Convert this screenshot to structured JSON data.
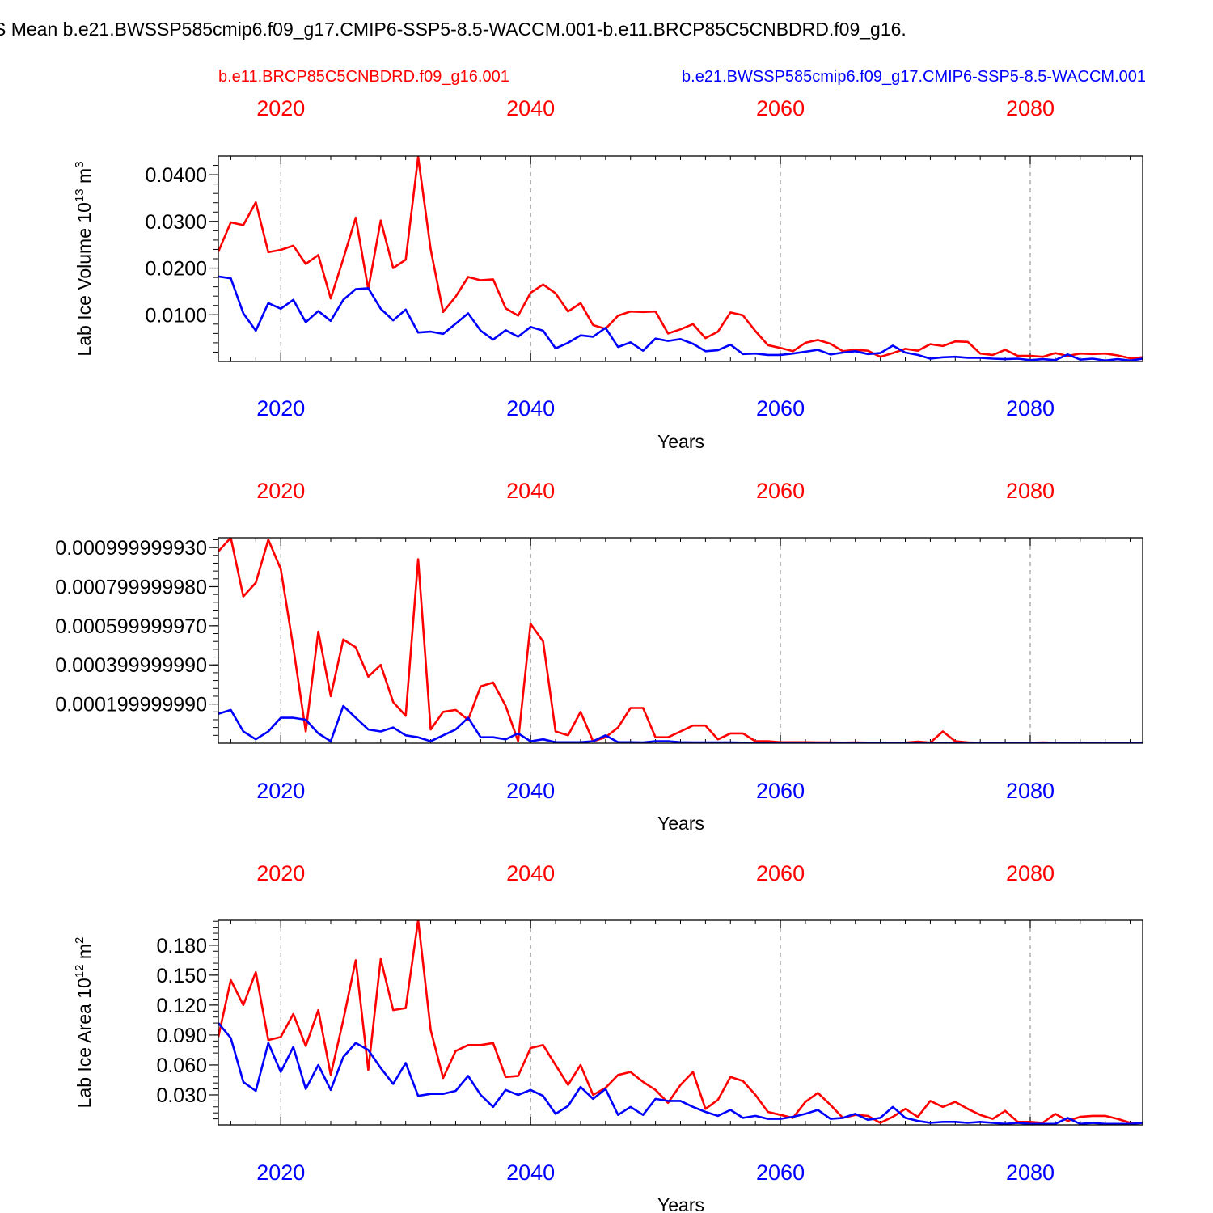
{
  "figure": {
    "title": "S Mean b.e21.BWSSP585cmip6.f09_g17.CMIP6-SSP5-8.5-WACCM.001-b.e11.BRCP85C5CNBDRD.f09_g16.",
    "legend_red": "b.e11.BRCP85C5CNBDRD.f09_g16.001",
    "legend_blue": "b.e21.BWSSP585cmip6.f09_g17.CMIP6-SSP5-8.5-WACCM.001"
  },
  "colors": {
    "red": "#ff0000",
    "blue": "#0000ff",
    "axis": "#000000",
    "grid": "#888888"
  },
  "chart_data": [
    {
      "type": "line",
      "title": "",
      "xlabel": "Years",
      "ylabel": "Lab Ice Volume 10",
      "ylabel_sup": "13",
      "ylabel_tail": " m",
      "ylabel_sup2": "3",
      "xlim": [
        2015,
        2089
      ],
      "ylim": [
        0.0,
        0.044
      ],
      "x_ticks": [
        2020,
        2040,
        2060,
        2080
      ],
      "x_tick_labels": [
        "2020",
        "2040",
        "2060",
        "2080"
      ],
      "y_ticks": [
        0.01,
        0.02,
        0.03,
        0.04
      ],
      "y_tick_labels": [
        "0.0100",
        "0.0200",
        "0.0300",
        "0.0400"
      ],
      "y_minor_step": 0.002,
      "x_start": 2015,
      "series": [
        {
          "name": "b.e11.BRCP85C5CNBDRD.f09_g16.001",
          "color": "red",
          "values": [
            0.0235,
            0.0298,
            0.0292,
            0.0341,
            0.0234,
            0.0239,
            0.0248,
            0.0209,
            0.0228,
            0.0135,
            0.022,
            0.0308,
            0.0155,
            0.0302,
            0.02,
            0.0218,
            0.0438,
            0.024,
            0.0106,
            0.0139,
            0.0181,
            0.0174,
            0.0176,
            0.0114,
            0.0098,
            0.0147,
            0.0165,
            0.0146,
            0.0107,
            0.0125,
            0.0078,
            0.007,
            0.0098,
            0.0107,
            0.0106,
            0.0107,
            0.006,
            0.0069,
            0.008,
            0.005,
            0.0064,
            0.0105,
            0.0099,
            0.0065,
            0.0035,
            0.0029,
            0.0022,
            0.004,
            0.0046,
            0.0038,
            0.0022,
            0.0025,
            0.0023,
            0.001,
            0.0018,
            0.0027,
            0.0023,
            0.0037,
            0.0033,
            0.0043,
            0.0042,
            0.0017,
            0.0014,
            0.0025,
            0.0012,
            0.0012,
            0.001,
            0.0018,
            0.0012,
            0.0017,
            0.0016,
            0.0017,
            0.0013,
            0.0007,
            0.0009
          ]
        },
        {
          "name": "b.e21.BWSSP585cmip6.f09_g17.CMIP6-SSP5-8.5-WACCM.001",
          "color": "blue",
          "values": [
            0.0182,
            0.0178,
            0.0103,
            0.0066,
            0.0125,
            0.0113,
            0.0132,
            0.0084,
            0.0108,
            0.0087,
            0.0132,
            0.0155,
            0.0157,
            0.0113,
            0.0088,
            0.0111,
            0.0062,
            0.0064,
            0.0059,
            0.0081,
            0.0103,
            0.0066,
            0.0047,
            0.0067,
            0.0053,
            0.0074,
            0.0066,
            0.0028,
            0.004,
            0.0056,
            0.0053,
            0.0072,
            0.0031,
            0.0041,
            0.0023,
            0.0049,
            0.0044,
            0.0048,
            0.0038,
            0.0022,
            0.0024,
            0.0036,
            0.0016,
            0.0017,
            0.0014,
            0.0014,
            0.0017,
            0.0021,
            0.0025,
            0.0015,
            0.0019,
            0.0022,
            0.0016,
            0.0018,
            0.0034,
            0.0019,
            0.0014,
            0.0006,
            0.0009,
            0.001,
            0.0008,
            0.0008,
            0.0006,
            0.0005,
            0.0006,
            0.0003,
            0.0005,
            0.0003,
            0.0015,
            0.0004,
            0.0006,
            0.0002,
            0.0005,
            0.0002,
            0.0006
          ]
        }
      ]
    },
    {
      "type": "line",
      "title": "",
      "xlabel": "Years",
      "ylabel": "",
      "ylabel_sup": "",
      "ylabel_tail": "",
      "ylabel_sup2": "",
      "xlim": [
        2015,
        2089
      ],
      "ylim": [
        0.0,
        0.00105
      ],
      "x_ticks": [
        2020,
        2040,
        2060,
        2080
      ],
      "x_tick_labels": [
        "2020",
        "2040",
        "2060",
        "2080"
      ],
      "y_ticks": [
        0.0002,
        0.0004,
        0.0006,
        0.0008,
        0.001
      ],
      "y_tick_labels": [
        "0.000199999990",
        "0.000399999990",
        "0.000599999970",
        "0.000799999980",
        "0.000999999930"
      ],
      "y_minor_step": 4e-05,
      "x_start": 2015,
      "series": [
        {
          "name": "b.e11.BRCP85C5CNBDRD.f09_g16.001",
          "color": "red",
          "values": [
            0.00098,
            0.00105,
            0.00075,
            0.00082,
            0.00104,
            0.00089,
            0.00049,
            6e-05,
            0.00057,
            0.00024,
            0.00053,
            0.00049,
            0.00034,
            0.0004,
            0.00021,
            0.00014,
            0.00094,
            7e-05,
            0.00016,
            0.00017,
            0.00012,
            0.00029,
            0.00031,
            0.00019,
            1e-05,
            0.00061,
            0.00052,
            6e-05,
            4e-05,
            0.00016,
            1e-05,
            3e-05,
            8e-05,
            0.00018,
            0.00018,
            3e-05,
            3e-05,
            6e-05,
            9e-05,
            9e-05,
            2e-05,
            5e-05,
            5e-05,
            1e-05,
            1e-05,
            5e-06,
            5e-06,
            5e-06,
            4e-06,
            4e-06,
            3e-06,
            4e-06,
            3e-06,
            3e-06,
            2e-06,
            3e-06,
            8e-06,
            3e-06,
            6e-05,
            1e-05,
            4e-06,
            2e-06,
            2e-06,
            2e-06,
            2e-06,
            2e-06,
            4e-06,
            2e-06,
            2e-06,
            2e-06,
            2e-06,
            2e-06,
            2e-06,
            2e-06,
            2e-06
          ]
        },
        {
          "name": "b.e21.BWSSP585cmip6.f09_g17.CMIP6-SSP5-8.5-WACCM.001",
          "color": "blue",
          "values": [
            0.00015,
            0.00017,
            6e-05,
            2e-05,
            6e-05,
            0.00013,
            0.00013,
            0.00012,
            5e-05,
            1e-05,
            0.00019,
            0.00013,
            7e-05,
            6e-05,
            8e-05,
            4e-05,
            3e-05,
            1e-05,
            4e-05,
            7e-05,
            0.00013,
            3e-05,
            3e-05,
            2e-05,
            5e-05,
            1e-05,
            2e-05,
            5e-06,
            5e-06,
            5e-06,
            1e-05,
            4e-05,
            5e-06,
            5e-06,
            4e-06,
            1e-05,
            1e-05,
            5e-06,
            4e-06,
            4e-06,
            4e-06,
            4e-06,
            3e-06,
            3e-06,
            2e-06,
            3e-06,
            2e-06,
            2e-06,
            2e-06,
            2e-06,
            2e-06,
            2e-06,
            2e-06,
            2e-06,
            2e-06,
            2e-06,
            2e-06,
            2e-06,
            2e-06,
            2e-06,
            2e-06,
            2e-06,
            2e-06,
            2e-06,
            2e-06,
            2e-06,
            2e-06,
            2e-06,
            2e-06,
            2e-06,
            2e-06,
            2e-06,
            2e-06,
            2e-06,
            2e-06
          ]
        }
      ]
    },
    {
      "type": "line",
      "title": "",
      "xlabel": "Years",
      "ylabel": "Lab Ice Area 10",
      "ylabel_sup": "12",
      "ylabel_tail": " m",
      "ylabel_sup2": "2",
      "xlim": [
        2015,
        2089
      ],
      "ylim": [
        0.0,
        0.205
      ],
      "x_ticks": [
        2020,
        2040,
        2060,
        2080
      ],
      "x_tick_labels": [
        "2020",
        "2040",
        "2060",
        "2080"
      ],
      "y_ticks": [
        0.03,
        0.06,
        0.09,
        0.12,
        0.15,
        0.18
      ],
      "y_tick_labels": [
        "0.030",
        "0.060",
        "0.090",
        "0.120",
        "0.150",
        "0.180"
      ],
      "y_minor_step": 0.006,
      "x_start": 2015,
      "series": [
        {
          "name": "b.e11.BRCP85C5CNBDRD.f09_g16.001",
          "color": "red",
          "values": [
            0.088,
            0.145,
            0.12,
            0.153,
            0.085,
            0.088,
            0.111,
            0.079,
            0.115,
            0.05,
            0.105,
            0.165,
            0.055,
            0.166,
            0.115,
            0.117,
            0.205,
            0.095,
            0.047,
            0.074,
            0.08,
            0.08,
            0.082,
            0.048,
            0.049,
            0.077,
            0.08,
            0.06,
            0.04,
            0.06,
            0.03,
            0.037,
            0.05,
            0.053,
            0.043,
            0.035,
            0.022,
            0.04,
            0.053,
            0.016,
            0.025,
            0.048,
            0.044,
            0.03,
            0.013,
            0.01,
            0.007,
            0.023,
            0.032,
            0.02,
            0.007,
            0.01,
            0.009,
            0.002,
            0.008,
            0.016,
            0.008,
            0.024,
            0.018,
            0.023,
            0.016,
            0.01,
            0.006,
            0.014,
            0.003,
            0.003,
            0.002,
            0.011,
            0.004,
            0.008,
            0.009,
            0.009,
            0.006,
            0.002,
            0.002
          ]
        },
        {
          "name": "b.e21.BWSSP585cmip6.f09_g17.CMIP6-SSP5-8.5-WACCM.001",
          "color": "blue",
          "values": [
            0.102,
            0.087,
            0.043,
            0.034,
            0.082,
            0.053,
            0.078,
            0.036,
            0.06,
            0.035,
            0.068,
            0.082,
            0.075,
            0.057,
            0.041,
            0.062,
            0.029,
            0.031,
            0.031,
            0.034,
            0.049,
            0.03,
            0.018,
            0.035,
            0.03,
            0.035,
            0.029,
            0.011,
            0.019,
            0.038,
            0.026,
            0.036,
            0.01,
            0.018,
            0.01,
            0.026,
            0.024,
            0.024,
            0.018,
            0.013,
            0.009,
            0.015,
            0.007,
            0.009,
            0.006,
            0.006,
            0.008,
            0.011,
            0.015,
            0.006,
            0.007,
            0.011,
            0.005,
            0.007,
            0.018,
            0.007,
            0.004,
            0.002,
            0.003,
            0.003,
            0.002,
            0.003,
            0.002,
            0.001,
            0.002,
            0.001,
            0.001,
            0.001,
            0.007,
            0.001,
            0.002,
            0.001,
            0.001,
            0.001,
            0.002
          ]
        }
      ]
    }
  ]
}
